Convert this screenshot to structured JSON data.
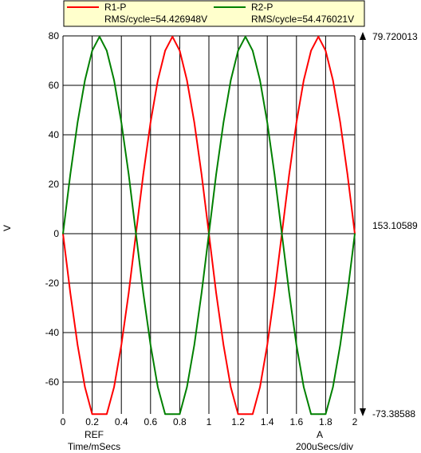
{
  "chart_data": {
    "type": "line",
    "x_unit_label": "Time/mSecs",
    "ylabel": "V",
    "xlim": [
      0,
      2
    ],
    "ylim": [
      -73.38588,
      79.720013
    ],
    "x_ticks": [
      0,
      0.2,
      0.4,
      0.6,
      0.8,
      1,
      1.2,
      1.4,
      1.6,
      1.8,
      2
    ],
    "x_tick_labels": [
      "0",
      "0.2",
      "0.4",
      "0.6",
      "0.8",
      "1",
      "1.2",
      "1.4",
      "1.6",
      "1.8",
      "2"
    ],
    "y_ticks": [
      80,
      60,
      40,
      20,
      0,
      -20,
      -40,
      -60
    ],
    "y_tick_labels": [
      "80",
      "60",
      "40",
      "20",
      "0",
      "-20",
      "-40",
      "-60"
    ],
    "grid": true,
    "legend_position": "top",
    "series": [
      {
        "name": "R1-P",
        "color": "#ff0000",
        "rms_text": "RMS/cycle=54.426948V",
        "x": [
          0,
          0.05,
          0.1,
          0.15,
          0.2,
          0.25,
          0.3,
          0.35,
          0.4,
          0.45,
          0.5,
          0.55,
          0.6,
          0.65,
          0.7,
          0.75,
          0.8,
          0.85,
          0.9,
          0.95,
          1,
          1.05,
          1.1,
          1.15,
          1.2,
          1.25,
          1.3,
          1.35,
          1.4,
          1.45,
          1.5,
          1.55,
          1.6,
          1.65,
          1.7,
          1.75,
          1.8,
          1.85,
          1.9,
          1.95,
          2
        ],
        "values": [
          0,
          -24,
          -45,
          -62,
          -73,
          -73,
          -73,
          -62,
          -45,
          -24,
          0,
          24,
          45,
          62,
          74,
          79.7,
          74,
          62,
          45,
          24,
          0,
          -24,
          -45,
          -62,
          -73,
          -73,
          -73,
          -62,
          -45,
          -24,
          0,
          24,
          45,
          62,
          74,
          79.7,
          74,
          62,
          45,
          24,
          0
        ]
      },
      {
        "name": "R2-P",
        "color": "#008000",
        "rms_text": "RMS/cycle=54.476021V",
        "x": [
          0,
          0.05,
          0.1,
          0.15,
          0.2,
          0.25,
          0.3,
          0.35,
          0.4,
          0.45,
          0.5,
          0.55,
          0.6,
          0.65,
          0.7,
          0.75,
          0.8,
          0.85,
          0.9,
          0.95,
          1,
          1.05,
          1.1,
          1.15,
          1.2,
          1.25,
          1.3,
          1.35,
          1.4,
          1.45,
          1.5,
          1.55,
          1.6,
          1.65,
          1.7,
          1.75,
          1.8,
          1.85,
          1.9,
          1.95,
          2
        ],
        "values": [
          0,
          24,
          45,
          62,
          74,
          79.7,
          74,
          62,
          45,
          24,
          0,
          -24,
          -45,
          -62,
          -73,
          -73,
          -73,
          -62,
          -45,
          -24,
          0,
          24,
          45,
          62,
          74,
          79.7,
          74,
          62,
          45,
          24,
          0,
          -24,
          -45,
          -62,
          -73,
          -73,
          -73,
          -62,
          -45,
          -24,
          0
        ]
      }
    ],
    "right_axis": {
      "top_label": "79.720013",
      "mid_label": "153.10589",
      "bottom_label": "-73.38588"
    },
    "cursors": [
      {
        "label": "REF",
        "x": 0.2
      },
      {
        "label": "A",
        "x": 1.75
      }
    ],
    "time_per_div": "200uSecs/div"
  }
}
